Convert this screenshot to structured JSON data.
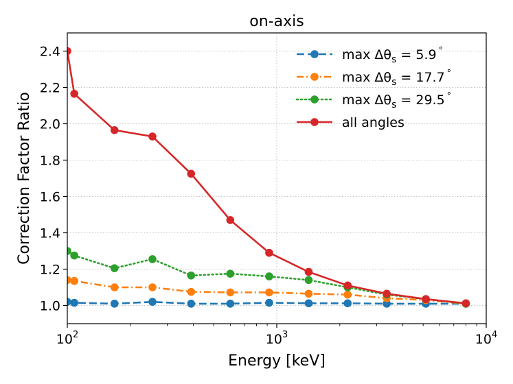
{
  "chart_data": {
    "type": "line",
    "title": "on-axis",
    "xlabel": "Energy [keV]",
    "ylabel": "Correction Factor Ratio",
    "xscale": "log",
    "xlim": [
      100,
      10000
    ],
    "ylim": [
      0.9,
      2.5
    ],
    "xticks": [
      {
        "value": 100,
        "base": "10",
        "exp": "2"
      },
      {
        "value": 1000,
        "base": "10",
        "exp": "3"
      },
      {
        "value": 10000,
        "base": "10",
        "exp": "4"
      }
    ],
    "yticks": [
      "1.0",
      "1.2",
      "1.4",
      "1.6",
      "1.8",
      "2.0",
      "2.2",
      "2.4"
    ],
    "grid": true,
    "legend_position": "top-right",
    "series": [
      {
        "name": "max Δθs = 5.9°",
        "legend_main": "max Δθ",
        "legend_sub": "s",
        "legend_rest": " = 5.9",
        "legend_deg": "°",
        "color": "#1f77b4",
        "linestyle": "dashed",
        "x": [
          100,
          108,
          168,
          255,
          390,
          600,
          920,
          1420,
          2180,
          3350,
          5150,
          8000
        ],
        "y": [
          1.02,
          1.015,
          1.01,
          1.02,
          1.01,
          1.01,
          1.015,
          1.012,
          1.012,
          1.01,
          1.01,
          1.01
        ]
      },
      {
        "name": "max Δθs = 17.7°",
        "legend_main": "max Δθ",
        "legend_sub": "s",
        "legend_rest": " = 17.7",
        "legend_deg": "°",
        "color": "#ff7f0e",
        "linestyle": "dashdot",
        "x": [
          100,
          108,
          168,
          255,
          390,
          600,
          920,
          1420,
          2180,
          3350,
          5150,
          8000
        ],
        "y": [
          1.14,
          1.135,
          1.1,
          1.1,
          1.075,
          1.072,
          1.072,
          1.065,
          1.06,
          1.04,
          1.03,
          1.01
        ]
      },
      {
        "name": "max Δθs = 29.5°",
        "legend_main": "max Δθ",
        "legend_sub": "s",
        "legend_rest": " = 29.5",
        "legend_deg": "°",
        "color": "#2ca02c",
        "linestyle": "dotted",
        "x": [
          100,
          108,
          168,
          255,
          390,
          600,
          920,
          1420,
          2180,
          3350,
          5150,
          8000
        ],
        "y": [
          1.3,
          1.275,
          1.205,
          1.255,
          1.165,
          1.175,
          1.16,
          1.14,
          1.1,
          1.06,
          1.035,
          1.01
        ]
      },
      {
        "name": "all angles",
        "legend_main": "all angles",
        "legend_sub": "",
        "legend_rest": "",
        "legend_deg": "",
        "color": "#d62728",
        "linestyle": "solid",
        "x": [
          100,
          108,
          168,
          255,
          390,
          600,
          920,
          1420,
          2180,
          3350,
          5150,
          8000
        ],
        "y": [
          2.4,
          2.165,
          1.965,
          1.93,
          1.725,
          1.47,
          1.29,
          1.185,
          1.11,
          1.065,
          1.035,
          1.012
        ]
      }
    ]
  }
}
